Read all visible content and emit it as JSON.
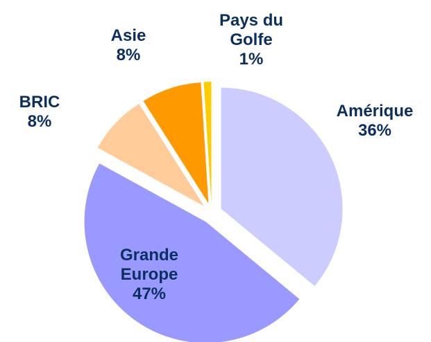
{
  "chart_data": {
    "type": "pie",
    "categories": [
      "Amérique",
      "Grande Europe",
      "BRIC",
      "Asie",
      "Pays du Golfe"
    ],
    "values": [
      36,
      47,
      8,
      8,
      1
    ],
    "value_labels": [
      "36%",
      "47%",
      "8%",
      "8%",
      "1%"
    ],
    "colors": [
      "#ccccff",
      "#9999ff",
      "#ffcc99",
      "#ff9900",
      "#ffcc00"
    ],
    "exploded": true
  }
}
